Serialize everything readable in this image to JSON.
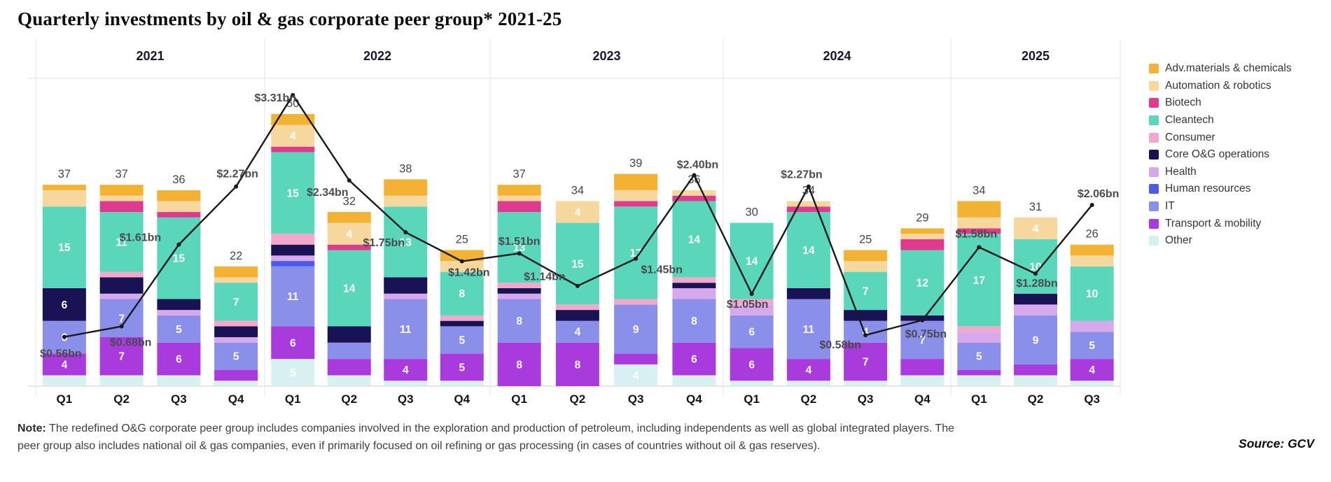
{
  "header": {
    "title": "Quarterly investments by oil & gas corporate peer group* 2021-25"
  },
  "note": {
    "prefix": "Note:",
    "text": " The redefined O&G corporate peer group includes companies involved in the exploration and production of petroleum, including independents as well as global integrated players. The peer group also includes national oil & gas companies, even if primarily focused on oil refining or gas processing  (in cases of countries without oil & gas reserves)."
  },
  "source": {
    "label": "Source: GCV"
  },
  "chart_data": {
    "type": "bar",
    "subtype": "stacked-bars-with-line-overlay",
    "title": "Quarterly investments by oil & gas corporate peer group* 2021-25",
    "grid": "top gridline and baseline only, vertical separators between year groups",
    "legend_position": "right",
    "ylim_bars": [
      0,
      56.5
    ],
    "ylim_line_bn": [
      0,
      3.5
    ],
    "line_series": {
      "name": "Total investment ($bn)",
      "color": "#1a1a1a"
    },
    "categories_legend": [
      {
        "name": "Adv.materials & chemicals",
        "color": "#F3B233"
      },
      {
        "name": "Automation & robotics",
        "color": "#F6D89E"
      },
      {
        "name": "Biotech",
        "color": "#E03A8E"
      },
      {
        "name": "Cleantech",
        "color": "#5AD7BA"
      },
      {
        "name": "Consumer",
        "color": "#F3A8CB"
      },
      {
        "name": "Core O&G operations",
        "color": "#191353"
      },
      {
        "name": "Health",
        "color": "#D6A8EC"
      },
      {
        "name": "Human resources",
        "color": "#4A5BE8"
      },
      {
        "name": "IT",
        "color": "#8A8FE9"
      },
      {
        "name": "Transport & mobility",
        "color": "#A93BDC"
      },
      {
        "name": "Other",
        "color": "#D8F0F1"
      }
    ],
    "stack_order_bottom_to_top": [
      "Other",
      "Transport & mobility",
      "IT",
      "Human resources",
      "Health",
      "Core O&G operations",
      "Consumer",
      "Cleantech",
      "Biotech",
      "Automation & robotics",
      "Adv.materials & chemicals"
    ],
    "groups": [
      {
        "year": "2021",
        "quarters": [
          {
            "label": "Q1",
            "total": 37,
            "line_value": 0.56,
            "line_label": "$0.56bn",
            "line_label_offset": [
              -5,
              24
            ],
            "segments": {
              "Other": 2,
              "Transport & mobility": 4,
              "IT": 6,
              "Core O&G operations": 6,
              "Cleantech": 15,
              "Automation & robotics": 3,
              "Adv.materials & chemicals": 1
            }
          },
          {
            "label": "Q2",
            "total": 37,
            "line_value": 0.68,
            "line_label": "$0.68bn",
            "line_label_offset": [
              13,
              23
            ],
            "segments": {
              "Other": 2,
              "Transport & mobility": 7,
              "IT": 7,
              "Health": 1,
              "Core O&G operations": 3,
              "Consumer": 1,
              "Cleantech": 11,
              "Biotech": 2,
              "Automation & robotics": 1,
              "Adv.materials & chemicals": 2
            }
          },
          {
            "label": "Q3",
            "total": 36,
            "line_value": 1.61,
            "line_label": "$1.61bn",
            "line_label_offset": [
              -55,
              -10
            ],
            "segments": {
              "Other": 2,
              "Transport & mobility": 6,
              "IT": 5,
              "Health": 1,
              "Core O&G operations": 2,
              "Cleantech": 15,
              "Biotech": 1,
              "Automation & robotics": 2,
              "Adv.materials & chemicals": 2
            }
          },
          {
            "label": "Q4",
            "total": 22,
            "line_value": 2.27,
            "line_label": "$2.27bn",
            "line_label_offset": [
              2,
              -18
            ],
            "segments": {
              "Other": 1,
              "Transport & mobility": 2,
              "IT": 5,
              "Health": 1,
              "Core O&G operations": 2,
              "Consumer": 1,
              "Cleantech": 7,
              "Automation & robotics": 1,
              "Adv.materials & chemicals": 2
            }
          }
        ]
      },
      {
        "year": "2022",
        "quarters": [
          {
            "label": "Q1",
            "total": 50,
            "line_value": 3.31,
            "line_label": "$3.31bn",
            "line_label_offset": [
              -25,
              4
            ],
            "segments": {
              "Other": 5,
              "Transport & mobility": 6,
              "IT": 11,
              "Human resources": 1,
              "Health": 1,
              "Core O&G operations": 2,
              "Consumer": 2,
              "Cleantech": 15,
              "Biotech": 1,
              "Automation & robotics": 4,
              "Adv.materials & chemicals": 2
            }
          },
          {
            "label": "Q2",
            "total": 32,
            "line_value": 2.34,
            "line_label": "$2.34bn",
            "line_label_offset": [
              -31,
              17
            ],
            "segments": {
              "Other": 2,
              "Transport & mobility": 3,
              "IT": 3,
              "Core O&G operations": 3,
              "Cleantech": 14,
              "Biotech": 1,
              "Automation & robotics": 4,
              "Adv.materials & chemicals": 2
            }
          },
          {
            "label": "Q3",
            "total": 38,
            "line_value": 1.75,
            "line_label": "$1.75bn",
            "line_label_offset": [
              -31,
              15
            ],
            "segments": {
              "Other": 1,
              "Transport & mobility": 4,
              "IT": 11,
              "Health": 1,
              "Core O&G operations": 3,
              "Cleantech": 13,
              "Automation & robotics": 2,
              "Adv.materials & chemicals": 3
            }
          },
          {
            "label": "Q4",
            "total": 25,
            "line_value": 1.42,
            "line_label": "$1.42bn",
            "line_label_offset": [
              10,
              16
            ],
            "segments": {
              "Other": 1,
              "Transport & mobility": 5,
              "IT": 5,
              "Core O&G operations": 1,
              "Consumer": 1,
              "Cleantech": 8,
              "Automation & robotics": 2,
              "Adv.materials & chemicals": 2
            }
          }
        ]
      },
      {
        "year": "2023",
        "quarters": [
          {
            "label": "Q1",
            "total": 37,
            "line_value": 1.51,
            "line_label": "$1.51bn",
            "line_label_offset": [
              0,
              -17
            ],
            "segments": {
              "Transport & mobility": 8,
              "IT": 8,
              "Health": 1,
              "Core O&G operations": 1,
              "Consumer": 1,
              "Cleantech": 13,
              "Biotech": 2,
              "Automation & robotics": 1,
              "Adv.materials & chemicals": 2
            }
          },
          {
            "label": "Q2",
            "total": 34,
            "line_value": 1.14,
            "line_label": "$1.14bn",
            "line_label_offset": [
              -47,
              -13
            ],
            "segments": {
              "Transport & mobility": 8,
              "IT": 4,
              "Core O&G operations": 2,
              "Consumer": 1,
              "Cleantech": 15,
              "Automation & robotics": 4
            }
          },
          {
            "label": "Q3",
            "total": 39,
            "line_value": 1.45,
            "line_label": "$1.45bn",
            "line_label_offset": [
              37,
              16
            ],
            "segments": {
              "Other": 4,
              "Transport & mobility": 2,
              "IT": 9,
              "Consumer": 1,
              "Cleantech": 17,
              "Biotech": 1,
              "Automation & robotics": 2,
              "Adv.materials & chemicals": 3
            }
          },
          {
            "label": "Q4",
            "total": 36,
            "line_value": 2.4,
            "line_label": "$2.40bn",
            "line_label_offset": [
              5,
              -15
            ],
            "segments": {
              "Other": 2,
              "Transport & mobility": 6,
              "IT": 8,
              "Health": 2,
              "Core O&G operations": 1,
              "Consumer": 1,
              "Cleantech": 14,
              "Biotech": 1,
              "Automation & robotics": 1
            }
          }
        ]
      },
      {
        "year": "2024",
        "quarters": [
          {
            "label": "Q1",
            "total": 30,
            "line_value": 1.05,
            "line_label": "$1.05bn",
            "line_label_offset": [
              -6,
              15
            ],
            "segments": {
              "Other": 1,
              "Transport & mobility": 6,
              "IT": 6,
              "Health": 2,
              "Consumer": 1,
              "Cleantech": 14
            }
          },
          {
            "label": "Q2",
            "total": 34,
            "line_value": 2.27,
            "line_label": "$2.27bn",
            "line_label_offset": [
              -10,
              -17
            ],
            "segments": {
              "Other": 1,
              "Transport & mobility": 4,
              "IT": 11,
              "Core O&G operations": 2,
              "Cleantech": 14,
              "Biotech": 1,
              "Automation & robotics": 1
            }
          },
          {
            "label": "Q3",
            "total": 25,
            "line_value": 0.58,
            "line_label": "$0.58bn",
            "line_label_offset": [
              -36,
              14
            ],
            "segments": {
              "Other": 1,
              "Transport & mobility": 7,
              "IT": 4,
              "Core O&G operations": 2,
              "Cleantech": 7,
              "Automation & robotics": 2,
              "Adv.materials & chemicals": 2
            }
          },
          {
            "label": "Q4",
            "total": 29,
            "line_value": 0.75,
            "line_label": "$0.75bn",
            "line_label_offset": [
              5,
              20
            ],
            "segments": {
              "Other": 2,
              "Transport & mobility": 3,
              "IT": 7,
              "Core O&G operations": 1,
              "Cleantech": 12,
              "Biotech": 2,
              "Automation & robotics": 1,
              "Adv.materials & chemicals": 1
            }
          }
        ]
      },
      {
        "year": "2025",
        "quarters": [
          {
            "label": "Q1",
            "total": 34,
            "line_value": 1.58,
            "line_label": "$1.58bn",
            "line_label_offset": [
              -4,
              -19
            ],
            "segments": {
              "Other": 2,
              "Transport & mobility": 1,
              "IT": 5,
              "Health": 2,
              "Consumer": 1,
              "Cleantech": 17,
              "Biotech": 1,
              "Automation & robotics": 2,
              "Adv.materials & chemicals": 3
            }
          },
          {
            "label": "Q2",
            "total": 31,
            "line_value": 1.28,
            "line_label": "$1.28bn",
            "line_label_offset": [
              2,
              14
            ],
            "segments": {
              "Other": 2,
              "Transport & mobility": 2,
              "IT": 9,
              "Health": 2,
              "Core O&G operations": 2,
              "Cleantech": 10,
              "Automation & robotics": 4
            }
          },
          {
            "label": "Q3",
            "total": 26,
            "line_value": 2.06,
            "line_label": "$2.06bn",
            "line_label_offset": [
              9,
              -16
            ],
            "segments": {
              "Other": 1,
              "Transport & mobility": 4,
              "IT": 5,
              "Health": 2,
              "Cleantech": 10,
              "Automation & robotics": 2,
              "Adv.materials & chemicals": 2
            }
          }
        ]
      }
    ]
  }
}
